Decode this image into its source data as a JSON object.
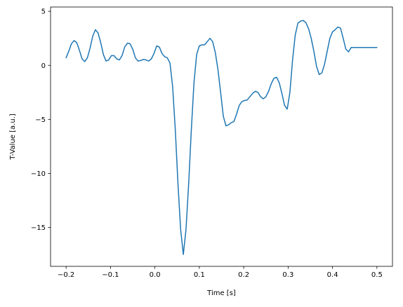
{
  "chart_data": {
    "type": "line",
    "title": "",
    "xlabel": "Time [s]",
    "ylabel": "T-Value [a.u.]",
    "xlim": [
      -0.235,
      0.535
    ],
    "ylim": [
      -18.6,
      5.4
    ],
    "xticks": [
      -0.2,
      -0.1,
      0.0,
      0.1,
      0.2,
      0.3,
      0.4,
      0.5
    ],
    "xtick_labels": [
      "−0.2",
      "−0.1",
      "0.0",
      "0.1",
      "0.2",
      "0.3",
      "0.4",
      "0.5"
    ],
    "yticks": [
      5,
      0,
      -5,
      -10,
      -15
    ],
    "ytick_labels": [
      "5",
      "0",
      "−5",
      "−10",
      "−15"
    ],
    "grid": false,
    "series": [
      {
        "color": "#1f77b4",
        "x": [
          -0.2,
          -0.194,
          -0.188,
          -0.182,
          -0.176,
          -0.17,
          -0.164,
          -0.158,
          -0.152,
          -0.146,
          -0.14,
          -0.134,
          -0.128,
          -0.122,
          -0.116,
          -0.11,
          -0.104,
          -0.098,
          -0.092,
          -0.086,
          -0.08,
          -0.074,
          -0.068,
          -0.062,
          -0.056,
          -0.05,
          -0.044,
          -0.038,
          -0.032,
          -0.026,
          -0.02,
          -0.014,
          -0.008,
          -0.002,
          0.004,
          0.01,
          0.016,
          0.022,
          0.028,
          0.034,
          0.04,
          0.046,
          0.052,
          0.058,
          0.064,
          0.07,
          0.076,
          0.082,
          0.088,
          0.094,
          0.1,
          0.106,
          0.112,
          0.118,
          0.124,
          0.13,
          0.136,
          0.142,
          0.148,
          0.154,
          0.16,
          0.166,
          0.172,
          0.178,
          0.184,
          0.19,
          0.196,
          0.202,
          0.208,
          0.214,
          0.22,
          0.226,
          0.232,
          0.238,
          0.244,
          0.25,
          0.256,
          0.262,
          0.268,
          0.274,
          0.28,
          0.286,
          0.292,
          0.298,
          0.304,
          0.31,
          0.316,
          0.322,
          0.328,
          0.334,
          0.34,
          0.346,
          0.352,
          0.358,
          0.364,
          0.37,
          0.376,
          0.382,
          0.388,
          0.394,
          0.4,
          0.406,
          0.412,
          0.418,
          0.424,
          0.43,
          0.436,
          0.442,
          0.448,
          0.454,
          0.46,
          0.466,
          0.472,
          0.478,
          0.484,
          0.49,
          0.496,
          0.5
        ],
        "y": [
          0.7,
          1.3,
          2.0,
          2.3,
          2.1,
          1.4,
          0.6,
          0.35,
          0.7,
          1.6,
          2.7,
          3.3,
          3.0,
          2.1,
          1.0,
          0.4,
          0.5,
          0.9,
          0.9,
          0.6,
          0.5,
          0.9,
          1.7,
          2.05,
          2.0,
          1.5,
          0.7,
          0.4,
          0.45,
          0.55,
          0.5,
          0.4,
          0.6,
          1.1,
          1.8,
          1.7,
          1.1,
          0.8,
          0.7,
          0.2,
          -2.0,
          -6.0,
          -11.0,
          -15.2,
          -17.5,
          -15.2,
          -11.0,
          -6.0,
          -1.6,
          1.0,
          1.8,
          1.9,
          1.9,
          2.2,
          2.5,
          2.2,
          1.2,
          -0.4,
          -2.5,
          -4.7,
          -5.6,
          -5.5,
          -5.3,
          -5.2,
          -4.5,
          -3.7,
          -3.35,
          -3.25,
          -3.2,
          -2.9,
          -2.6,
          -2.4,
          -2.5,
          -2.9,
          -3.1,
          -2.9,
          -2.4,
          -1.7,
          -1.2,
          -1.1,
          -1.6,
          -2.6,
          -3.7,
          -4.05,
          -2.5,
          0.5,
          2.8,
          3.9,
          4.1,
          4.15,
          3.95,
          3.4,
          2.5,
          1.3,
          -0.1,
          -0.85,
          -0.7,
          0.1,
          1.3,
          2.5,
          3.1,
          3.3,
          3.55,
          3.45,
          2.5,
          1.5,
          1.25,
          1.65,
          1.65,
          1.65,
          1.65,
          1.65,
          1.65,
          1.65,
          1.65,
          1.65,
          1.65,
          1.65
        ]
      }
    ]
  }
}
